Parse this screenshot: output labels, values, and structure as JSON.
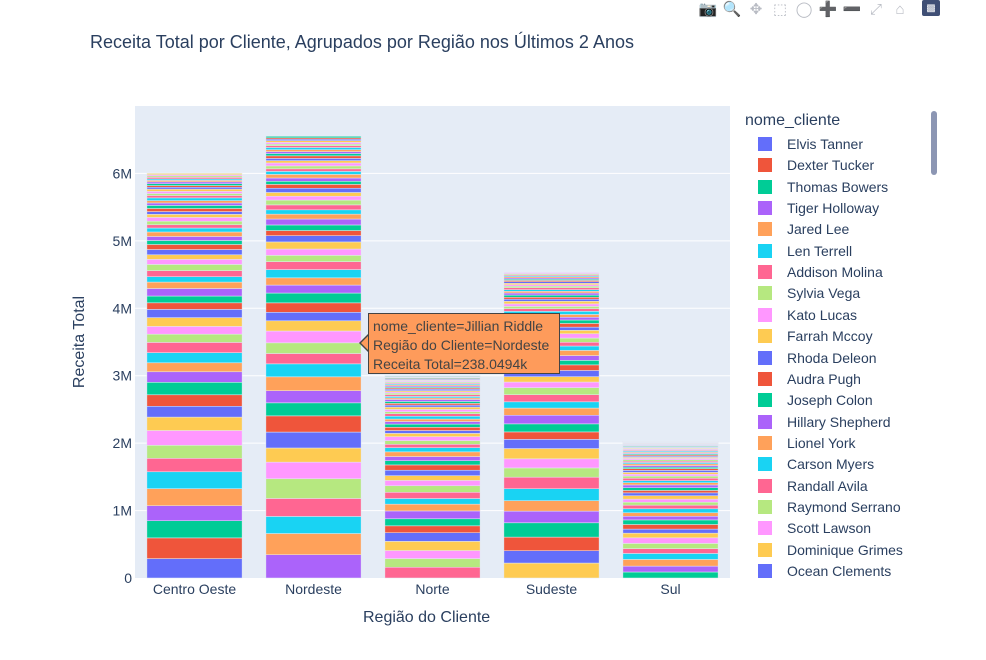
{
  "chart_data": {
    "type": "bar",
    "barmode": "stack",
    "title": "Receita Total por Cliente, Agrupados por Região nos Últimos 2 Anos",
    "xlabel": "Região do Cliente",
    "ylabel": "Receita Total",
    "categories": [
      "Centro Oeste",
      "Nordeste",
      "Norte",
      "Sudeste",
      "Sul"
    ],
    "totals": [
      6.0,
      6.55,
      3.0,
      4.53,
      2.03
    ],
    "ylim": [
      0,
      7.0
    ],
    "yticks": [
      {
        "value": 0,
        "label": "0"
      },
      {
        "value": 1,
        "label": "1M"
      },
      {
        "value": 2,
        "label": "2M"
      },
      {
        "value": 3,
        "label": "3M"
      },
      {
        "value": 4,
        "label": "4M"
      },
      {
        "value": 5,
        "label": "5M"
      },
      {
        "value": 6,
        "label": "6M"
      }
    ],
    "grid": true,
    "legend_title": "nome_cliente",
    "legend_position": "right",
    "series": [
      {
        "name": "Elvis Tanner",
        "color": "#636efa"
      },
      {
        "name": "Dexter Tucker",
        "color": "#ef553b"
      },
      {
        "name": "Thomas Bowers",
        "color": "#00cc96"
      },
      {
        "name": "Tiger Holloway",
        "color": "#ab63fa"
      },
      {
        "name": "Jared Lee",
        "color": "#ffa15a"
      },
      {
        "name": "Len Terrell",
        "color": "#19d3f3"
      },
      {
        "name": "Addison Molina",
        "color": "#ff6692"
      },
      {
        "name": "Sylvia Vega",
        "color": "#b6e880"
      },
      {
        "name": "Kato Lucas",
        "color": "#ff97ff"
      },
      {
        "name": "Farrah Mccoy",
        "color": "#fecb52"
      },
      {
        "name": "Rhoda Deleon",
        "color": "#636efa"
      },
      {
        "name": "Audra Pugh",
        "color": "#ef553b"
      },
      {
        "name": "Joseph Colon",
        "color": "#00cc96"
      },
      {
        "name": "Hillary Shepherd",
        "color": "#ab63fa"
      },
      {
        "name": "Lionel York",
        "color": "#ffa15a"
      },
      {
        "name": "Carson Myers",
        "color": "#19d3f3"
      },
      {
        "name": "Randall Avila",
        "color": "#ff6692"
      },
      {
        "name": "Raymond Serrano",
        "color": "#b6e880"
      },
      {
        "name": "Scott Lawson",
        "color": "#ff97ff"
      },
      {
        "name": "Dominique Grimes",
        "color": "#fecb52"
      },
      {
        "name": "Ocean Clements",
        "color": "#636efa"
      }
    ],
    "palette": [
      "#636efa",
      "#ef553b",
      "#00cc96",
      "#ab63fa",
      "#ffa15a",
      "#19d3f3",
      "#ff6692",
      "#b6e880",
      "#ff97ff",
      "#fecb52"
    ],
    "tooltip": {
      "lines": [
        "nome_cliente=Jillian Riddle",
        "Região do Cliente=Nordeste",
        "Receita Total=238.0494k"
      ],
      "color": "#fe9b5b"
    }
  },
  "modebar": {
    "icons": [
      "camera-icon",
      "zoom-icon",
      "pan-icon",
      "box-select-icon",
      "lasso-icon",
      "zoom-in-icon",
      "zoom-out-icon",
      "autoscale-icon",
      "reset-axes-icon",
      "plotly-logo-icon"
    ]
  }
}
